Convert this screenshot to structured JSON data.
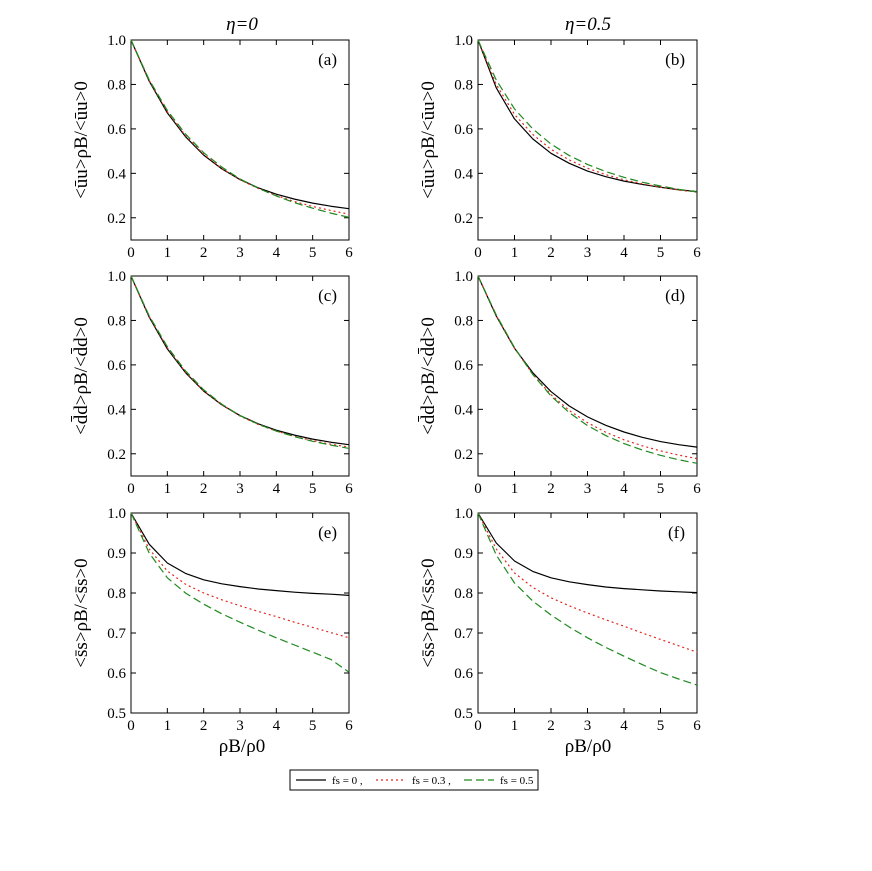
{
  "column_titles": [
    "η=0",
    "η=0.5"
  ],
  "x_axis_label": "ρB/ρ0",
  "colors": {
    "fs0": "#000000",
    "fs03": "#e0281e",
    "fs05": "#1f8a1f"
  },
  "legend": {
    "placement": "bottom-center",
    "entries": [
      {
        "label": "fs = 0 ,",
        "color": "#000000",
        "dash": "solid"
      },
      {
        "label": "fs = 0.3 ,",
        "color": "#e0281e",
        "dash": "dotted"
      },
      {
        "label": "fs = 0.5",
        "color": "#1f8a1f",
        "dash": "dashed"
      }
    ]
  },
  "chart_data": [
    {
      "type": "line",
      "panel_label": "(a)",
      "column_title": "η=0",
      "ylabel": "<ūu>ρB/<ūu>0",
      "xlabel": "",
      "xlim": [
        0,
        6
      ],
      "ylim": [
        0.1,
        1.0
      ],
      "xticks": [
        0,
        1,
        2,
        3,
        4,
        5,
        6
      ],
      "yticks": [
        0.2,
        0.4,
        0.6,
        0.8,
        1.0
      ],
      "x": [
        0,
        0.5,
        1,
        1.5,
        2,
        2.5,
        3,
        3.5,
        4,
        4.5,
        5,
        5.5,
        6
      ],
      "series": [
        {
          "name": "fs = 0",
          "values": [
            1.0,
            0.815,
            0.672,
            0.565,
            0.482,
            0.42,
            0.372,
            0.335,
            0.306,
            0.284,
            0.266,
            0.252,
            0.241
          ]
        },
        {
          "name": "fs = 0.3",
          "values": [
            1.0,
            0.818,
            0.677,
            0.57,
            0.486,
            0.422,
            0.371,
            0.332,
            0.3,
            0.273,
            0.251,
            0.233,
            0.216
          ]
        },
        {
          "name": "fs = 0.5",
          "values": [
            1.0,
            0.821,
            0.683,
            0.577,
            0.493,
            0.428,
            0.375,
            0.333,
            0.298,
            0.268,
            0.243,
            0.221,
            0.202
          ]
        }
      ]
    },
    {
      "type": "line",
      "panel_label": "(b)",
      "column_title": "η=0.5",
      "ylabel": "<ūu>ρB/<ūu>0",
      "xlabel": "",
      "xlim": [
        0,
        6
      ],
      "ylim": [
        0.1,
        1.0
      ],
      "xticks": [
        0,
        1,
        2,
        3,
        4,
        5,
        6
      ],
      "yticks": [
        0.2,
        0.4,
        0.6,
        0.8,
        1.0
      ],
      "x": [
        0,
        0.5,
        1,
        1.5,
        2,
        2.5,
        3,
        3.5,
        4,
        4.5,
        5,
        5.5,
        6
      ],
      "series": [
        {
          "name": "fs = 0",
          "values": [
            1.0,
            0.785,
            0.645,
            0.555,
            0.49,
            0.445,
            0.41,
            0.385,
            0.365,
            0.35,
            0.337,
            0.326,
            0.318
          ]
        },
        {
          "name": "fs = 0.3",
          "values": [
            1.0,
            0.8,
            0.665,
            0.575,
            0.508,
            0.46,
            0.423,
            0.394,
            0.371,
            0.353,
            0.338,
            0.325,
            0.315
          ]
        },
        {
          "name": "fs = 0.5",
          "values": [
            1.0,
            0.82,
            0.69,
            0.6,
            0.532,
            0.48,
            0.44,
            0.408,
            0.382,
            0.36,
            0.343,
            0.328,
            0.316
          ]
        }
      ]
    },
    {
      "type": "line",
      "panel_label": "(c)",
      "column_title": "η=0",
      "ylabel": "<d̄d>ρB/<d̄d>0",
      "xlabel": "",
      "xlim": [
        0,
        6
      ],
      "ylim": [
        0.1,
        1.0
      ],
      "xticks": [
        0,
        1,
        2,
        3,
        4,
        5,
        6
      ],
      "yticks": [
        0.2,
        0.4,
        0.6,
        0.8,
        1.0
      ],
      "x": [
        0,
        0.5,
        1,
        1.5,
        2,
        2.5,
        3,
        3.5,
        4,
        4.5,
        5,
        5.5,
        6
      ],
      "series": [
        {
          "name": "fs = 0",
          "values": [
            1.0,
            0.815,
            0.672,
            0.565,
            0.482,
            0.42,
            0.372,
            0.335,
            0.306,
            0.284,
            0.266,
            0.252,
            0.241
          ]
        },
        {
          "name": "fs = 0.3",
          "values": [
            1.0,
            0.818,
            0.677,
            0.568,
            0.484,
            0.42,
            0.37,
            0.332,
            0.302,
            0.278,
            0.259,
            0.243,
            0.23
          ]
        },
        {
          "name": "fs = 0.5",
          "values": [
            1.0,
            0.821,
            0.682,
            0.573,
            0.488,
            0.423,
            0.372,
            0.333,
            0.302,
            0.277,
            0.256,
            0.239,
            0.224
          ]
        }
      ]
    },
    {
      "type": "line",
      "panel_label": "(d)",
      "column_title": "η=0.5",
      "ylabel": "<d̄d>ρB/<d̄d>0",
      "xlabel": "",
      "xlim": [
        0,
        6
      ],
      "ylim": [
        0.1,
        1.0
      ],
      "xticks": [
        0,
        1,
        2,
        3,
        4,
        5,
        6
      ],
      "yticks": [
        0.2,
        0.4,
        0.6,
        0.8,
        1.0
      ],
      "x": [
        0,
        0.5,
        1,
        1.5,
        2,
        2.5,
        3,
        3.5,
        4,
        4.5,
        5,
        5.5,
        6
      ],
      "series": [
        {
          "name": "fs = 0",
          "values": [
            1.0,
            0.82,
            0.675,
            0.565,
            0.48,
            0.415,
            0.366,
            0.328,
            0.298,
            0.274,
            0.255,
            0.241,
            0.23
          ]
        },
        {
          "name": "fs = 0.3",
          "values": [
            1.0,
            0.822,
            0.675,
            0.558,
            0.466,
            0.395,
            0.34,
            0.297,
            0.263,
            0.236,
            0.213,
            0.194,
            0.178
          ]
        },
        {
          "name": "fs = 0.5",
          "values": [
            1.0,
            0.825,
            0.678,
            0.557,
            0.46,
            0.385,
            0.327,
            0.282,
            0.246,
            0.217,
            0.193,
            0.173,
            0.157
          ]
        }
      ]
    },
    {
      "type": "line",
      "panel_label": "(e)",
      "column_title": "η=0",
      "ylabel": "<s̄s>ρB/<s̄s>0",
      "xlabel": "ρB/ρ0",
      "xlim": [
        0,
        6
      ],
      "ylim": [
        0.5,
        1.0
      ],
      "xticks": [
        0,
        1,
        2,
        3,
        4,
        5,
        6
      ],
      "yticks": [
        0.5,
        0.6,
        0.7,
        0.8,
        0.9,
        1.0
      ],
      "x": [
        0,
        0.5,
        1,
        1.5,
        2,
        2.5,
        3,
        3.5,
        4,
        4.5,
        5,
        5.5,
        6
      ],
      "series": [
        {
          "name": "fs = 0",
          "values": [
            1.0,
            0.922,
            0.875,
            0.849,
            0.833,
            0.823,
            0.816,
            0.81,
            0.806,
            0.802,
            0.799,
            0.797,
            0.794
          ]
        },
        {
          "name": "fs = 0.3",
          "values": [
            1.0,
            0.91,
            0.855,
            0.822,
            0.8,
            0.783,
            0.768,
            0.754,
            0.741,
            0.727,
            0.714,
            0.701,
            0.688
          ]
        },
        {
          "name": "fs = 0.5",
          "values": [
            1.0,
            0.9,
            0.838,
            0.8,
            0.772,
            0.748,
            0.727,
            0.707,
            0.688,
            0.67,
            0.652,
            0.634,
            0.602
          ]
        }
      ]
    },
    {
      "type": "line",
      "panel_label": "(f)",
      "column_title": "η=0.5",
      "ylabel": "<s̄s>ρB/<s̄s>0",
      "xlabel": "ρB/ρ0",
      "xlim": [
        0,
        6
      ],
      "ylim": [
        0.5,
        1.0
      ],
      "xticks": [
        0,
        1,
        2,
        3,
        4,
        5,
        6
      ],
      "yticks": [
        0.5,
        0.6,
        0.7,
        0.8,
        0.9,
        1.0
      ],
      "x": [
        0,
        0.5,
        1,
        1.5,
        2,
        2.5,
        3,
        3.5,
        4,
        4.5,
        5,
        5.5,
        6
      ],
      "series": [
        {
          "name": "fs = 0",
          "values": [
            1.0,
            0.925,
            0.88,
            0.854,
            0.838,
            0.828,
            0.821,
            0.815,
            0.811,
            0.808,
            0.805,
            0.803,
            0.801
          ]
        },
        {
          "name": "fs = 0.3",
          "values": [
            1.0,
            0.91,
            0.85,
            0.814,
            0.788,
            0.768,
            0.75,
            0.733,
            0.717,
            0.7,
            0.684,
            0.668,
            0.652
          ]
        },
        {
          "name": "fs = 0.5",
          "values": [
            1.0,
            0.895,
            0.825,
            0.78,
            0.745,
            0.715,
            0.688,
            0.664,
            0.642,
            0.621,
            0.601,
            0.585,
            0.57
          ]
        }
      ]
    }
  ]
}
